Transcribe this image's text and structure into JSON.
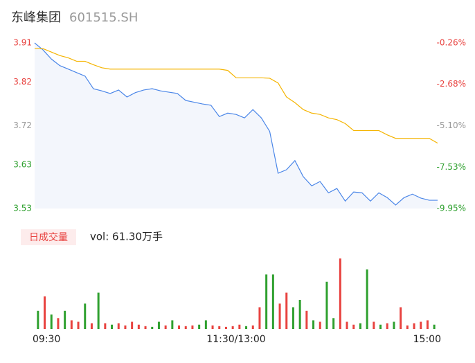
{
  "header": {
    "title": "东峰集团",
    "code": "601515.SH"
  },
  "chart_data": [
    {
      "type": "line",
      "x": [
        0,
        5,
        10,
        15,
        20,
        25,
        30,
        35,
        40,
        45,
        50,
        55,
        60,
        65,
        70,
        75,
        80,
        85,
        90,
        95,
        100,
        105,
        110,
        115,
        120,
        125,
        130,
        135,
        140,
        145,
        150,
        155,
        160,
        165,
        170,
        175,
        180,
        185,
        190,
        195,
        200,
        205,
        210,
        215,
        220,
        225,
        230,
        235,
        240
      ],
      "xlim": [
        0,
        240
      ],
      "series": [
        {
          "color": "#4a86e8",
          "values": [
            3.91,
            3.894,
            3.873,
            3.858,
            3.85,
            3.842,
            3.834,
            3.805,
            3.8,
            3.794,
            3.802,
            3.786,
            3.796,
            3.802,
            3.805,
            3.8,
            3.797,
            3.794,
            3.778,
            3.774,
            3.77,
            3.767,
            3.741,
            3.749,
            3.746,
            3.738,
            3.757,
            3.738,
            3.707,
            3.611,
            3.619,
            3.64,
            3.603,
            3.582,
            3.592,
            3.566,
            3.576,
            3.547,
            3.568,
            3.566,
            3.547,
            3.566,
            3.555,
            3.538,
            3.555,
            3.563,
            3.554,
            3.549,
            3.549
          ]
        },
        {
          "color": "#f5b400",
          "values": [
            3.897,
            3.897,
            3.889,
            3.881,
            3.876,
            3.868,
            3.868,
            3.86,
            3.853,
            3.85,
            3.85,
            3.85,
            3.85,
            3.85,
            3.85,
            3.85,
            3.85,
            3.85,
            3.85,
            3.85,
            3.85,
            3.85,
            3.85,
            3.847,
            3.83,
            3.83,
            3.83,
            3.83,
            3.829,
            3.818,
            3.786,
            3.773,
            3.757,
            3.749,
            3.746,
            3.738,
            3.734,
            3.725,
            3.709,
            3.709,
            3.709,
            3.709,
            3.699,
            3.691,
            3.691,
            3.691,
            3.691,
            3.691,
            3.68
          ]
        }
      ],
      "ylim": [
        3.53,
        3.91
      ],
      "yticks": [
        3.91,
        3.82,
        3.72,
        3.63,
        3.53
      ],
      "ytick_colors": [
        "#e8423f",
        "#e8423f",
        "#999999",
        "#2ea02e",
        "#2ea02e"
      ],
      "y2lim": [
        -9.95,
        -0.26
      ],
      "y2ticks": [
        {
          "value": -0.26,
          "label": "-0.26%"
        },
        {
          "value": -2.68,
          "label": "-2.68%"
        },
        {
          "value": -5.1,
          "label": "-5.10%"
        },
        {
          "value": -7.53,
          "label": "-7.53%"
        },
        {
          "value": -9.95,
          "label": "-9.95%"
        }
      ],
      "y2tick_colors": [
        "#e8423f",
        "#e8423f",
        "#999999",
        "#2ea02e",
        "#2ea02e"
      ],
      "area_color": "#f3f6fc"
    },
    {
      "type": "bar",
      "title": "日成交量",
      "label": "vol: 61.30万手",
      "x": [
        2,
        6,
        10,
        14,
        18,
        22,
        26,
        30,
        34,
        38,
        42,
        46,
        50,
        54,
        58,
        62,
        66,
        70,
        74,
        78,
        82,
        86,
        90,
        94,
        98,
        102,
        106,
        110,
        114,
        118,
        122,
        126,
        130,
        134,
        138,
        142,
        146,
        150,
        154,
        158,
        162,
        166,
        170,
        174,
        178,
        182,
        186,
        190,
        194,
        198,
        202,
        206,
        210,
        214,
        218,
        222,
        226,
        230,
        234,
        238
      ],
      "xlim": [
        0,
        240
      ],
      "xticks": [
        {
          "value": 0,
          "label": "09:30"
        },
        {
          "value": 120,
          "label": "11:30/13:00"
        },
        {
          "value": 240,
          "label": "15:00"
        }
      ],
      "values": [
        0.25,
        0.45,
        0.2,
        0.15,
        0.25,
        0.12,
        0.1,
        0.35,
        0.08,
        0.5,
        0.08,
        0.06,
        0.08,
        0.05,
        0.1,
        0.06,
        0.04,
        0.03,
        0.1,
        0.05,
        0.12,
        0.05,
        0.04,
        0.05,
        0.06,
        0.12,
        0.05,
        0.04,
        0.03,
        0.04,
        0.06,
        0.04,
        0.05,
        0.3,
        0.75,
        0.75,
        0.35,
        0.5,
        0.3,
        0.4,
        0.25,
        0.12,
        0.1,
        0.65,
        0.15,
        0.97,
        0.1,
        0.06,
        0.08,
        0.82,
        0.1,
        0.06,
        0.08,
        0.1,
        0.3,
        0.05,
        0.08,
        0.1,
        0.12,
        0.06
      ],
      "colors": [
        "#2ea02e",
        "#e8423f",
        "#2ea02e",
        "#e8423f",
        "#2ea02e",
        "#e8423f",
        "#e8423f",
        "#2ea02e",
        "#e8423f",
        "#2ea02e",
        "#e8423f",
        "#2ea02e",
        "#e8423f",
        "#e8423f",
        "#e8423f",
        "#e8423f",
        "#e8423f",
        "#2ea02e",
        "#2ea02e",
        "#e8423f",
        "#2ea02e",
        "#e8423f",
        "#e8423f",
        "#e8423f",
        "#2ea02e",
        "#2ea02e",
        "#e8423f",
        "#e8423f",
        "#e8423f",
        "#e8423f",
        "#e8423f",
        "#2ea02e",
        "#e8423f",
        "#e8423f",
        "#2ea02e",
        "#2ea02e",
        "#e8423f",
        "#e8423f",
        "#2ea02e",
        "#2ea02e",
        "#e8423f",
        "#2ea02e",
        "#e8423f",
        "#2ea02e",
        "#2ea02e",
        "#e8423f",
        "#e8423f",
        "#e8423f",
        "#2ea02e",
        "#2ea02e",
        "#e8423f",
        "#2ea02e",
        "#e8423f",
        "#2ea02e",
        "#e8423f",
        "#e8423f",
        "#e8423f",
        "#e8423f",
        "#e8423f",
        "#2ea02e"
      ],
      "ylim": [
        0,
        1
      ]
    }
  ]
}
